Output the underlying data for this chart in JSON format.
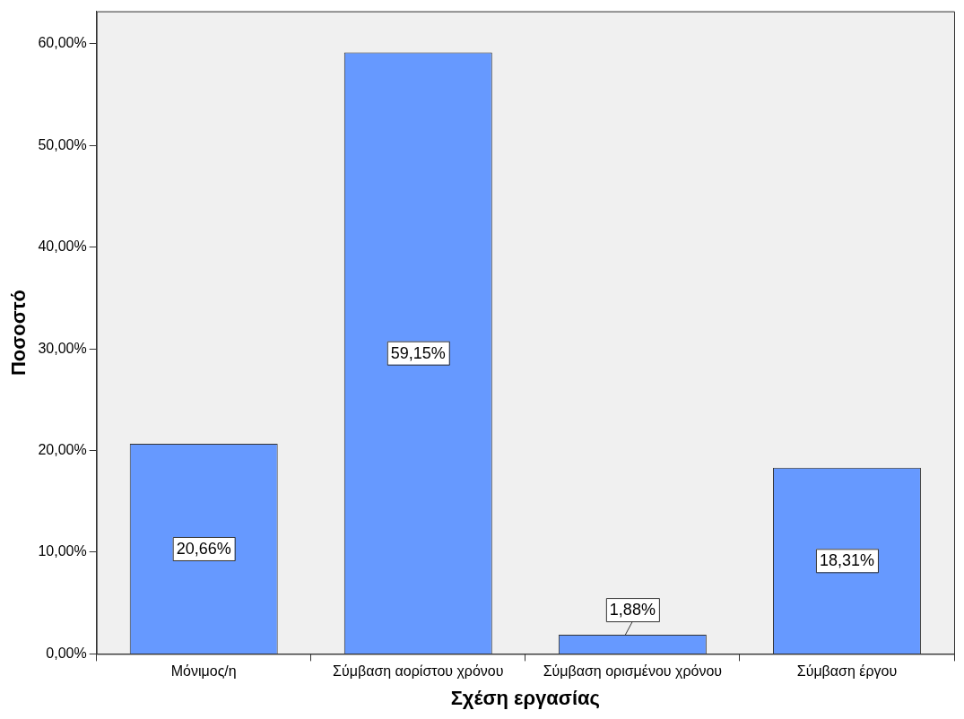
{
  "chart_data": {
    "type": "bar",
    "xlabel": "Σχέση εργασίας",
    "ylabel": "Ποσοστό",
    "categories": [
      "Μόνιμος/η",
      "Σύμβαση αορίστου χρόνου",
      "Σύμβαση ορισμένου χρόνου",
      "Σύμβαση έργου"
    ],
    "values": [
      20.66,
      59.15,
      1.88,
      18.31
    ],
    "value_labels": [
      "20,66%",
      "59,15%",
      "1,88%",
      "18,31%"
    ],
    "color": "#6699ff",
    "ylim": [
      0,
      63.2
    ],
    "yticks": [
      {
        "value": 0,
        "label": "0,00%"
      },
      {
        "value": 10,
        "label": "10,00%"
      },
      {
        "value": 20,
        "label": "20,00%"
      },
      {
        "value": 30,
        "label": "30,00%"
      },
      {
        "value": 40,
        "label": "40,00%"
      },
      {
        "value": 50,
        "label": "50,00%"
      },
      {
        "value": 60,
        "label": "60,00%"
      }
    ],
    "grid": false,
    "legend": false
  }
}
